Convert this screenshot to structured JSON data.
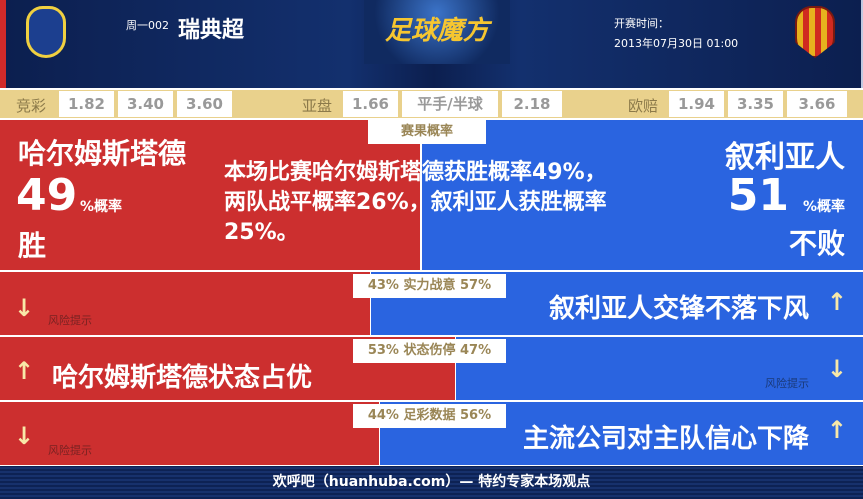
{
  "header": {
    "week": "周一002",
    "league": "瑞典超",
    "brand": "足球魔方",
    "kickoff_label": "开赛时间：",
    "kickoff_time": "2013年07月30日 01:00"
  },
  "odds": {
    "jc_label": "竞彩",
    "jc": [
      "1.82",
      "3.40",
      "3.60"
    ],
    "yp_label": "亚盘",
    "yp": [
      "1.66",
      "平手/半球",
      "2.18"
    ],
    "op_label": "欧赔",
    "op": [
      "1.94",
      "3.35",
      "3.66"
    ]
  },
  "summary": {
    "tag": "赛果概率",
    "home": "哈尔姆斯塔德",
    "home_pct": "49",
    "pct_unit": "%概率",
    "home_result": "胜",
    "away": "叙利亚人",
    "away_pct": "51",
    "away_result": "不败",
    "text": "本场比赛哈尔姆斯塔德获胜概率49%，两队战平概率26%，叙利亚人获胜概率25%。",
    "home_share": 49
  },
  "rows": [
    {
      "tag": "43% 实力战意 57%",
      "home_pct": 43,
      "left_text": "风险提示",
      "right_text": "叙利亚人交锋不落下风"
    },
    {
      "tag": "53% 状态伤停 47%",
      "home_pct": 53,
      "left_text": "哈尔姆斯塔德状态占优",
      "right_text": "风险提示"
    },
    {
      "tag": "44% 足彩数据 56%",
      "home_pct": 44,
      "left_text": "风险提示",
      "right_text": "主流公司对主队信心下降"
    }
  ],
  "colors": {
    "home": "#cc2f2f",
    "away": "#2a64e0"
  },
  "footer": "欢呼吧（huanhuba.com）— 特约专家本场观点"
}
